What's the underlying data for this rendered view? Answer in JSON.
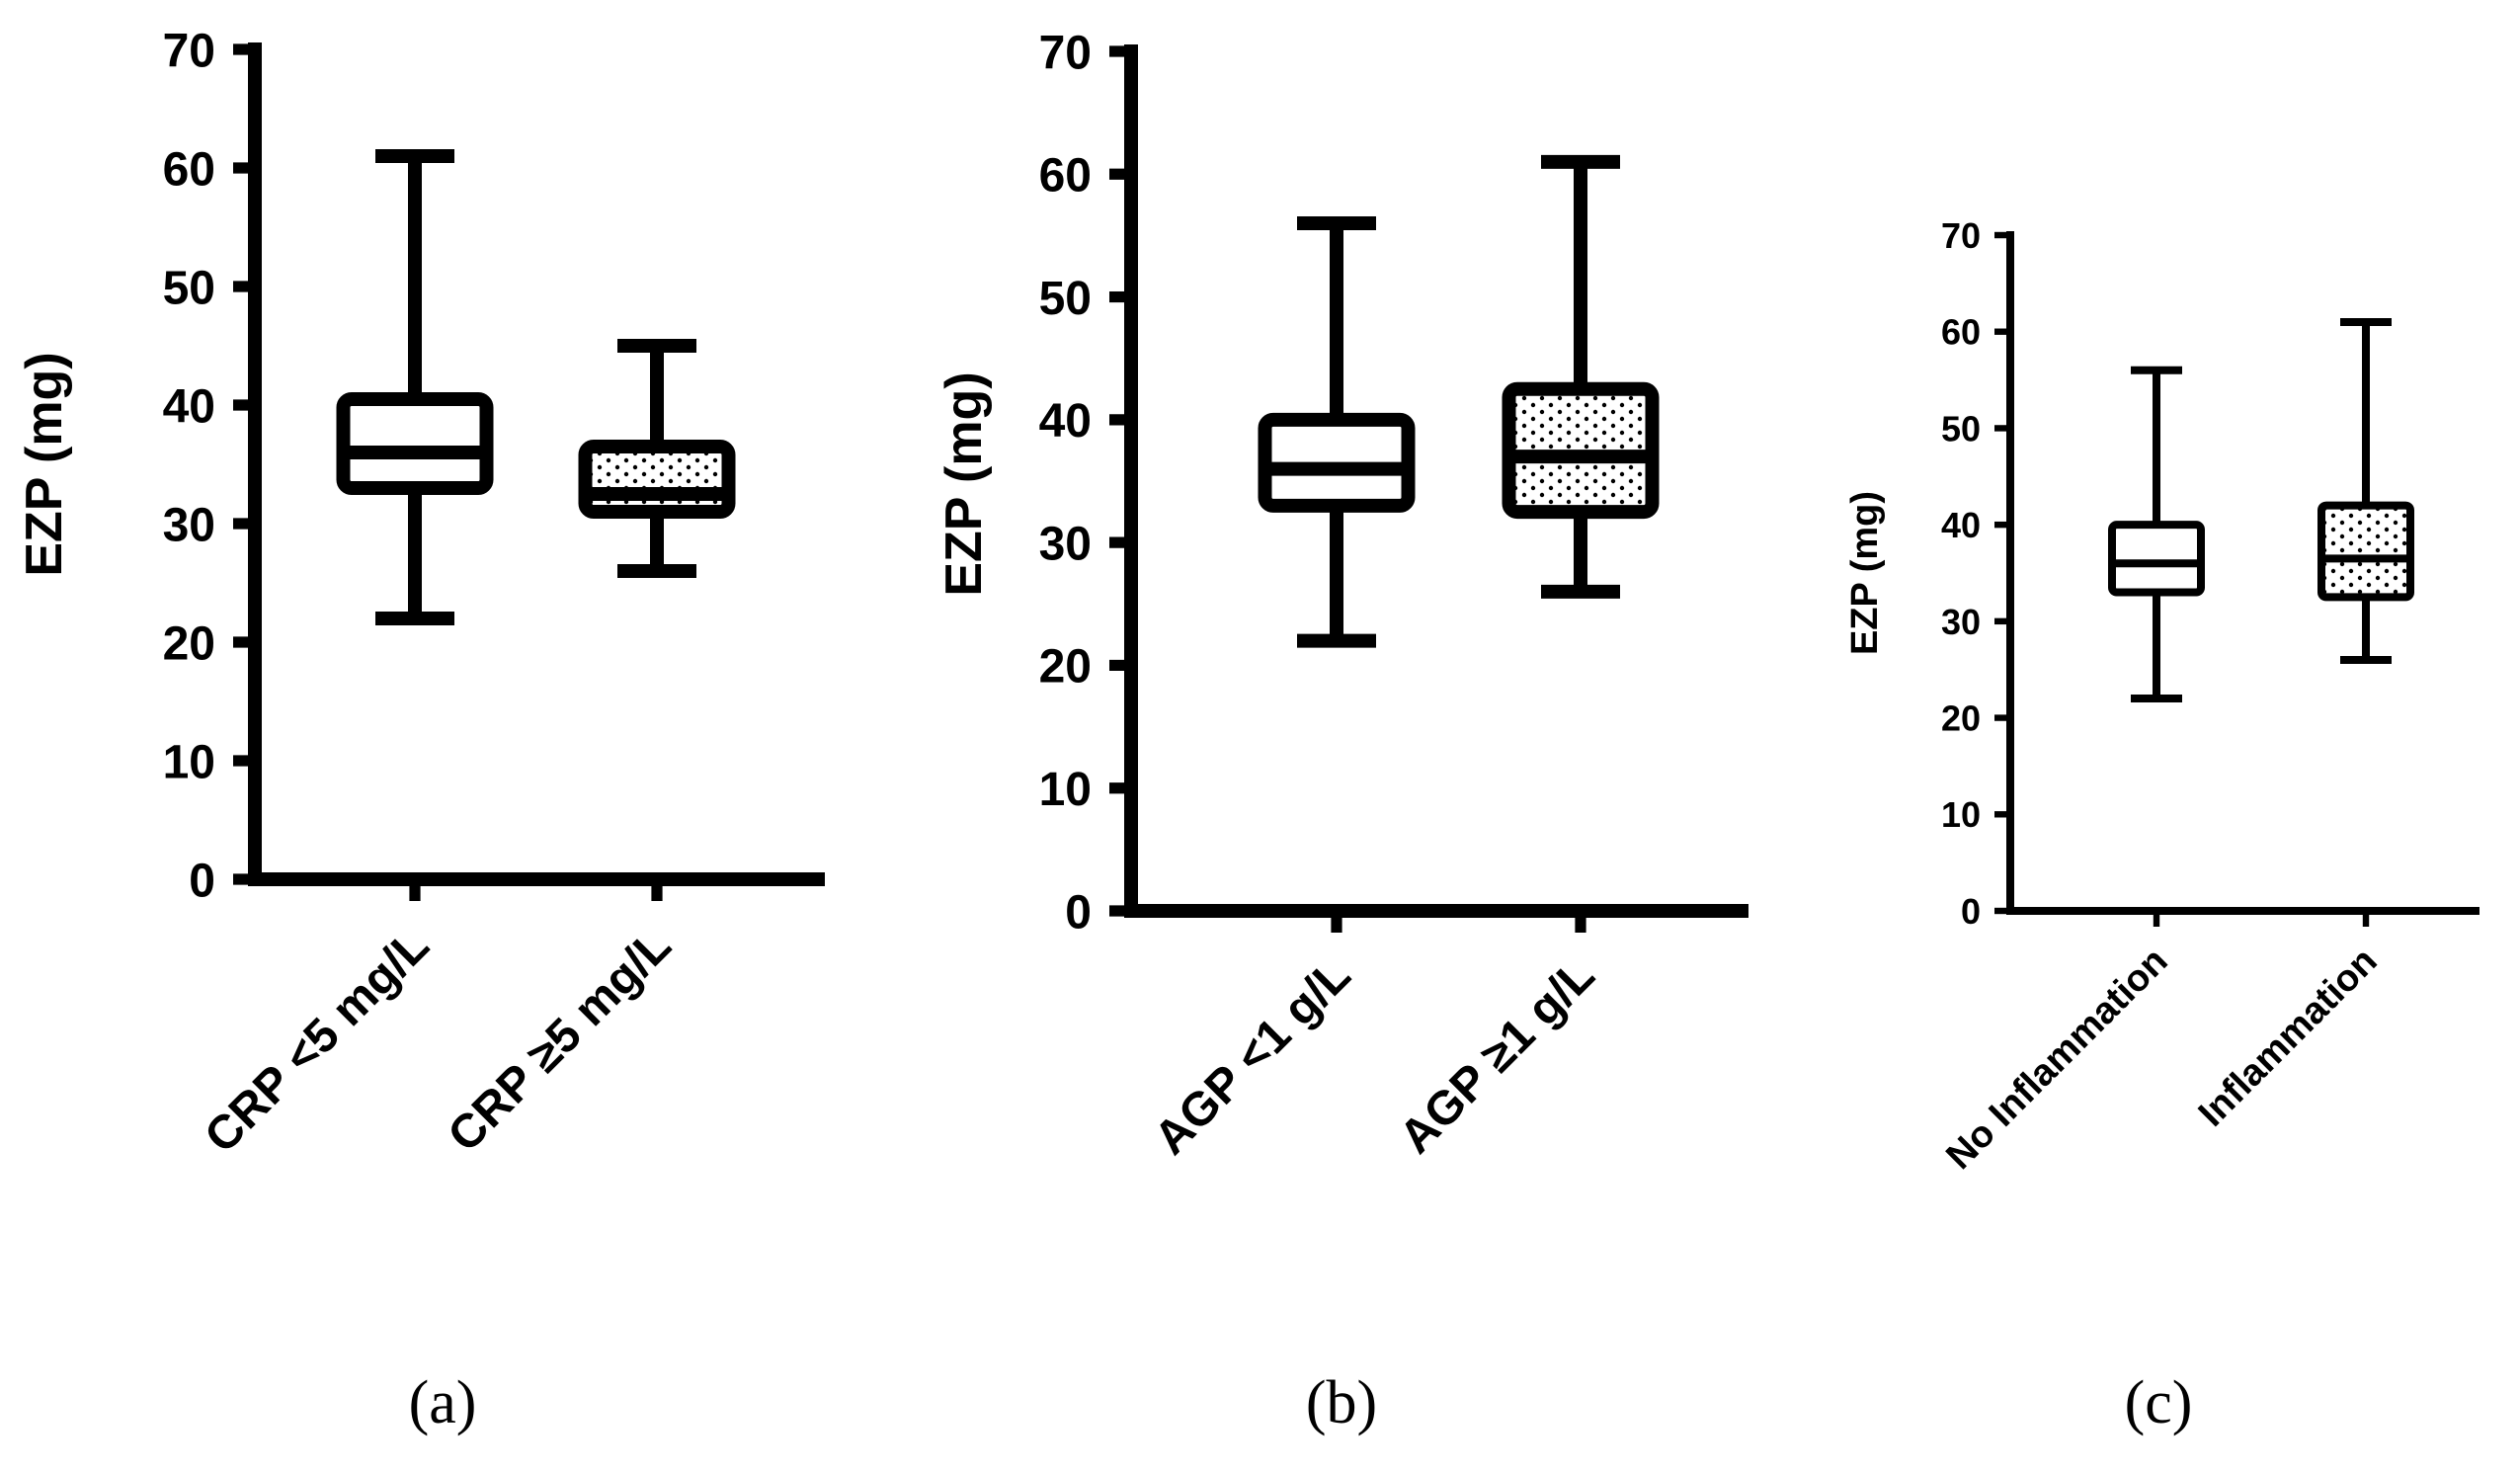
{
  "chart_data": [
    {
      "type": "boxplot",
      "panel_label": "(a)",
      "ylabel": "EZP (mg)",
      "ylim": [
        0,
        70
      ],
      "yticks": [
        "0",
        "10",
        "20",
        "30",
        "40",
        "50",
        "60",
        "70"
      ],
      "categories": [
        "CRP <5 mg/L",
        "CRP ≥5 mg/L"
      ],
      "boxes": [
        {
          "name": "CRP <5 mg/L",
          "min": 22,
          "q1": 33,
          "median": 36,
          "q3": 40.5,
          "max": 61,
          "pattern": "none"
        },
        {
          "name": "CRP ≥5 mg/L",
          "min": 26,
          "q1": 31,
          "median": 32.5,
          "q3": 36.5,
          "max": 45,
          "pattern": "dots"
        }
      ]
    },
    {
      "type": "boxplot",
      "panel_label": "(b)",
      "ylabel": "EZP (mg)",
      "ylim": [
        0,
        70
      ],
      "yticks": [
        "0",
        "10",
        "20",
        "30",
        "40",
        "50",
        "60",
        "70"
      ],
      "categories": [
        "AGP <1 g/L",
        "AGP ≥1 g/L"
      ],
      "boxes": [
        {
          "name": "AGP <1 g/L",
          "min": 22,
          "q1": 33,
          "median": 36,
          "q3": 40,
          "max": 56,
          "pattern": "none"
        },
        {
          "name": "AGP ≥1 g/L",
          "min": 26,
          "q1": 32.5,
          "median": 37,
          "q3": 42.5,
          "max": 61,
          "pattern": "dots"
        }
      ]
    },
    {
      "type": "boxplot",
      "panel_label": "(c)",
      "ylabel": "EZP (mg)",
      "ylim": [
        0,
        70
      ],
      "yticks": [
        "0",
        "10",
        "20",
        "30",
        "40",
        "50",
        "60",
        "70"
      ],
      "categories": [
        "No Inflammation",
        "Inflammation"
      ],
      "boxes": [
        {
          "name": "No Inflammation",
          "min": 22,
          "q1": 33,
          "median": 36,
          "q3": 40,
          "max": 56,
          "pattern": "none"
        },
        {
          "name": "Inflammation",
          "min": 26,
          "q1": 32.5,
          "median": 36.5,
          "q3": 42,
          "max": 61,
          "pattern": "dots"
        }
      ]
    }
  ]
}
